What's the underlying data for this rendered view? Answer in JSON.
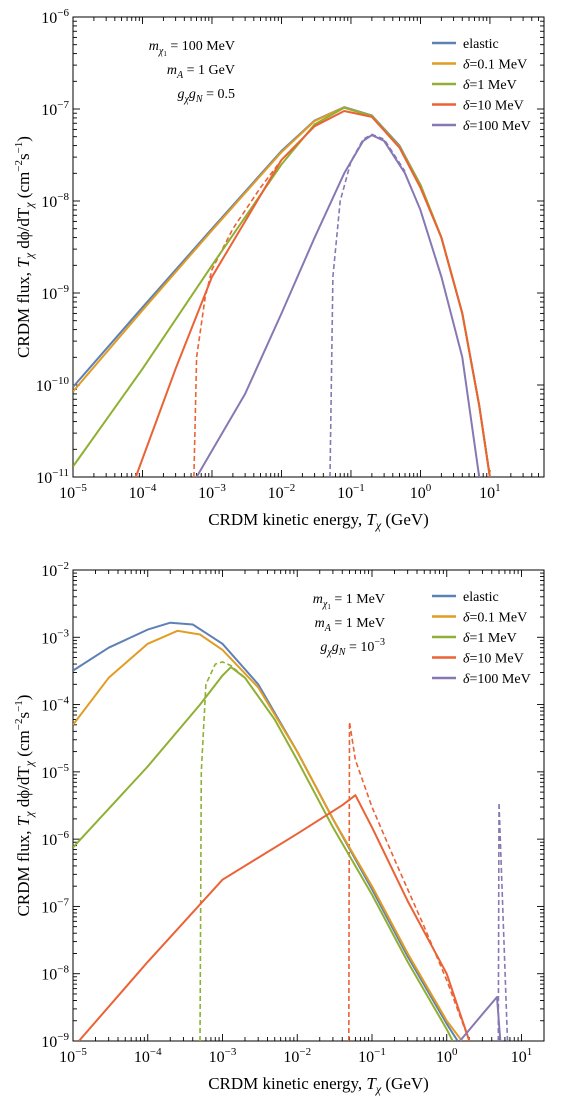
{
  "chart_data": [
    {
      "type": "line",
      "xlabel": "CRDM kinetic energy, T_χ (GeV)",
      "ylabel": "CRDM flux, T_χ dφ/dT_χ (cm⁻² s⁻¹)",
      "x_scale": "log",
      "y_scale": "log",
      "xlim": [
        1e-05,
        60
      ],
      "ylim": [
        1e-11,
        1e-06
      ],
      "x_ticks": [
        {
          "exp": -5
        },
        {
          "exp": -4
        },
        {
          "exp": -3
        },
        {
          "exp": -2
        },
        {
          "exp": -1
        },
        {
          "exp": 0
        },
        {
          "exp": 1
        }
      ],
      "y_ticks": [
        {
          "exp": -11
        },
        {
          "exp": -10
        },
        {
          "exp": -9
        },
        {
          "exp": -8
        },
        {
          "exp": -7
        },
        {
          "exp": -6
        }
      ],
      "annotations": [
        "m_χ1 = 100 MeV",
        "m_A = 1 GeV",
        "g_χ g_N = 0.5"
      ],
      "legend_position": "top-right",
      "series": [
        {
          "name": "elastic",
          "color": "#5e81b5",
          "points": [
            [
              1e-05,
              9.5e-11
            ],
            [
              0.0001,
              7e-10
            ],
            [
              0.001,
              5e-09
            ],
            [
              0.01,
              3.5e-08
            ],
            [
              0.03,
              7.5e-08
            ],
            [
              0.08,
              1.05e-07
            ],
            [
              0.2,
              8.5e-08
            ],
            [
              0.5,
              4e-08
            ],
            [
              1,
              1.5e-08
            ],
            [
              2,
              4e-09
            ],
            [
              4,
              6e-10
            ],
            [
              7,
              6e-11
            ],
            [
              10,
              1e-11
            ]
          ]
        },
        {
          "name": "δ=0.1 MeV",
          "color": "#e19c24",
          "points": [
            [
              1e-05,
              8.5e-11
            ],
            [
              0.0001,
              6.5e-10
            ],
            [
              0.001,
              4.8e-09
            ],
            [
              0.01,
              3.4e-08
            ],
            [
              0.03,
              7.4e-08
            ],
            [
              0.08,
              1.04e-07
            ],
            [
              0.2,
              8.4e-08
            ],
            [
              0.5,
              3.9e-08
            ],
            [
              1,
              1.5e-08
            ],
            [
              2,
              4e-09
            ],
            [
              4,
              6e-10
            ],
            [
              7,
              6e-11
            ],
            [
              10,
              1e-11
            ]
          ]
        },
        {
          "name": "δ=1 MeV",
          "color": "#8fb032",
          "points": [
            [
              1e-05,
              1.3e-11
            ],
            [
              0.0001,
              1.5e-10
            ],
            [
              0.001,
              2e-09
            ],
            [
              0.01,
              2.5e-08
            ],
            [
              0.03,
              6.8e-08
            ],
            [
              0.08,
              1.03e-07
            ],
            [
              0.2,
              8.4e-08
            ],
            [
              0.5,
              3.9e-08
            ],
            [
              1,
              1.5e-08
            ],
            [
              2,
              4e-09
            ],
            [
              4,
              6e-10
            ],
            [
              7,
              6e-11
            ],
            [
              10,
              1e-11
            ]
          ]
        },
        {
          "name": "δ=10 MeV",
          "color": "#eb6235",
          "points": [
            [
              8e-05,
              1e-11
            ],
            [
              0.0003,
              1.5e-10
            ],
            [
              0.001,
              1.5e-09
            ],
            [
              0.003,
              6e-09
            ],
            [
              0.01,
              2.8e-08
            ],
            [
              0.03,
              6.5e-08
            ],
            [
              0.08,
              9.5e-08
            ],
            [
              0.2,
              8.2e-08
            ],
            [
              0.5,
              3.8e-08
            ],
            [
              1,
              1.4e-08
            ],
            [
              2,
              4e-09
            ],
            [
              4,
              6e-10
            ],
            [
              7,
              6e-11
            ],
            [
              10,
              1e-11
            ]
          ]
        },
        {
          "name": "δ=100 MeV",
          "color": "#8778b3",
          "points": [
            [
              0.0006,
              1e-11
            ],
            [
              0.003,
              8e-11
            ],
            [
              0.01,
              6e-10
            ],
            [
              0.03,
              4e-09
            ],
            [
              0.08,
              2e-08
            ],
            [
              0.15,
              4.5e-08
            ],
            [
              0.2,
              5.2e-08
            ],
            [
              0.3,
              4.5e-08
            ],
            [
              0.6,
              2e-08
            ],
            [
              1,
              8e-09
            ],
            [
              2,
              1.5e-09
            ],
            [
              4,
              2e-10
            ],
            [
              7,
              1e-11
            ]
          ]
        }
      ],
      "dashed_series": [
        {
          "color": "#eb6235",
          "points": [
            [
              0.00055,
              1e-11
            ],
            [
              0.0006,
              2e-10
            ],
            [
              0.0008,
              9e-10
            ],
            [
              0.001,
              1.8e-09
            ],
            [
              0.002,
              5e-09
            ],
            [
              0.005,
              1.4e-08
            ],
            [
              0.01,
              2.8e-08
            ],
            [
              0.03,
              6.5e-08
            ]
          ]
        },
        {
          "color": "#8778b3",
          "points": [
            [
              0.05,
              1e-11
            ],
            [
              0.055,
              1.5e-09
            ],
            [
              0.07,
              1e-08
            ],
            [
              0.1,
              2.7e-08
            ],
            [
              0.15,
              4.7e-08
            ],
            [
              0.2,
              5.3e-08
            ],
            [
              0.3,
              4.7e-08
            ],
            [
              0.6,
              2.1e-08
            ]
          ]
        }
      ]
    },
    {
      "type": "line",
      "xlabel": "CRDM kinetic energy, T_χ (GeV)",
      "ylabel": "CRDM flux, T_χ dφ/dT_χ (cm⁻² s⁻¹)",
      "x_scale": "log",
      "y_scale": "log",
      "xlim": [
        1e-05,
        20
      ],
      "ylim": [
        1e-09,
        0.01
      ],
      "x_ticks": [
        {
          "exp": -5
        },
        {
          "exp": -4
        },
        {
          "exp": -3
        },
        {
          "exp": -2
        },
        {
          "exp": -1
        },
        {
          "exp": 0
        },
        {
          "exp": 1
        }
      ],
      "y_ticks": [
        {
          "exp": -9
        },
        {
          "exp": -8
        },
        {
          "exp": -7
        },
        {
          "exp": -6
        },
        {
          "exp": -5
        },
        {
          "exp": -4
        },
        {
          "exp": -3
        },
        {
          "exp": -2
        }
      ],
      "annotations": [
        "m_χ1 = 1 MeV",
        "m_A = 1 MeV",
        "g_χ g_N = 10⁻³"
      ],
      "legend_position": "top-right",
      "series": [
        {
          "name": "elastic",
          "color": "#5e81b5",
          "points": [
            [
              1e-05,
              0.00032
            ],
            [
              3e-05,
              0.0007
            ],
            [
              0.0001,
              0.0013
            ],
            [
              0.0002,
              0.00165
            ],
            [
              0.0004,
              0.00155
            ],
            [
              0.001,
              0.0008
            ],
            [
              0.003,
              0.0002
            ],
            [
              0.01,
              2e-05
            ],
            [
              0.03,
              2e-06
            ],
            [
              0.1,
              1.8e-07
            ],
            [
              0.3,
              1.8e-08
            ],
            [
              1,
              1.8e-09
            ],
            [
              1.4,
              1e-09
            ]
          ]
        },
        {
          "name": "δ=0.1 MeV",
          "color": "#e19c24",
          "points": [
            [
              1e-05,
              5e-05
            ],
            [
              3e-05,
              0.00025
            ],
            [
              0.0001,
              0.0008
            ],
            [
              0.00025,
              0.00125
            ],
            [
              0.0005,
              0.0011
            ],
            [
              0.001,
              0.00065
            ],
            [
              0.003,
              0.00018
            ],
            [
              0.01,
              2e-05
            ],
            [
              0.03,
              2e-06
            ],
            [
              0.1,
              2e-07
            ],
            [
              0.3,
              2e-08
            ],
            [
              1,
              2e-09
            ],
            [
              1.6,
              1e-09
            ]
          ]
        },
        {
          "name": "δ=1 MeV",
          "color": "#8fb032",
          "points": [
            [
              1e-05,
              7.5e-07
            ],
            [
              0.0001,
              1.2e-05
            ],
            [
              0.0005,
              0.0001
            ],
            [
              0.001,
              0.00027
            ],
            [
              0.0013,
              0.00036
            ],
            [
              0.002,
              0.00025
            ],
            [
              0.005,
              6e-05
            ],
            [
              0.01,
              1.5e-05
            ],
            [
              0.03,
              1.5e-06
            ],
            [
              0.1,
              1.5e-07
            ],
            [
              0.3,
              1.5e-08
            ],
            [
              1,
              1.5e-09
            ],
            [
              1.2,
              1e-09
            ]
          ]
        },
        {
          "name": "δ=10 MeV",
          "color": "#eb6235",
          "points": [
            [
              1.2e-05,
              1e-09
            ],
            [
              0.0001,
              1.5e-08
            ],
            [
              0.001,
              2.5e-07
            ],
            [
              0.01,
              1.2e-06
            ],
            [
              0.04,
              3.2e-06
            ],
            [
              0.06,
              4.5e-06
            ],
            [
              0.1,
              1.5e-06
            ],
            [
              0.3,
              1.2e-07
            ],
            [
              1,
              1e-08
            ],
            [
              2,
              1e-09
            ]
          ]
        },
        {
          "name": "δ=100 MeV",
          "color": "#8778b3",
          "points": [
            [
              1.5,
              1e-09
            ],
            [
              3,
              2.5e-09
            ],
            [
              4.7,
              4.5e-09
            ],
            [
              5.2,
              1e-09
            ]
          ]
        }
      ],
      "dashed_series": [
        {
          "color": "#8fb032",
          "points": [
            [
              0.0005,
              1e-09
            ],
            [
              0.00052,
              1e-05
            ],
            [
              0.0006,
              0.0002
            ],
            [
              0.0008,
              0.0004
            ],
            [
              0.001,
              0.00043
            ],
            [
              0.0013,
              0.00038
            ],
            [
              0.002,
              0.00025
            ],
            [
              0.005,
              6e-05
            ]
          ]
        },
        {
          "color": "#eb6235",
          "points": [
            [
              0.049,
              1e-09
            ],
            [
              0.05,
              5.5e-05
            ],
            [
              0.06,
              1.5e-05
            ],
            [
              0.1,
              3e-06
            ],
            [
              0.2,
              5e-07
            ],
            [
              0.5,
              5e-08
            ],
            [
              1,
              8e-09
            ],
            [
              2,
              1e-09
            ]
          ]
        },
        {
          "color": "#8778b3",
          "points": [
            [
              4.9,
              1e-09
            ],
            [
              5,
              3.5e-06
            ],
            [
              5.2,
              1e-06
            ],
            [
              5.6,
              1e-07
            ],
            [
              6.5,
              1e-09
            ]
          ]
        }
      ]
    }
  ]
}
